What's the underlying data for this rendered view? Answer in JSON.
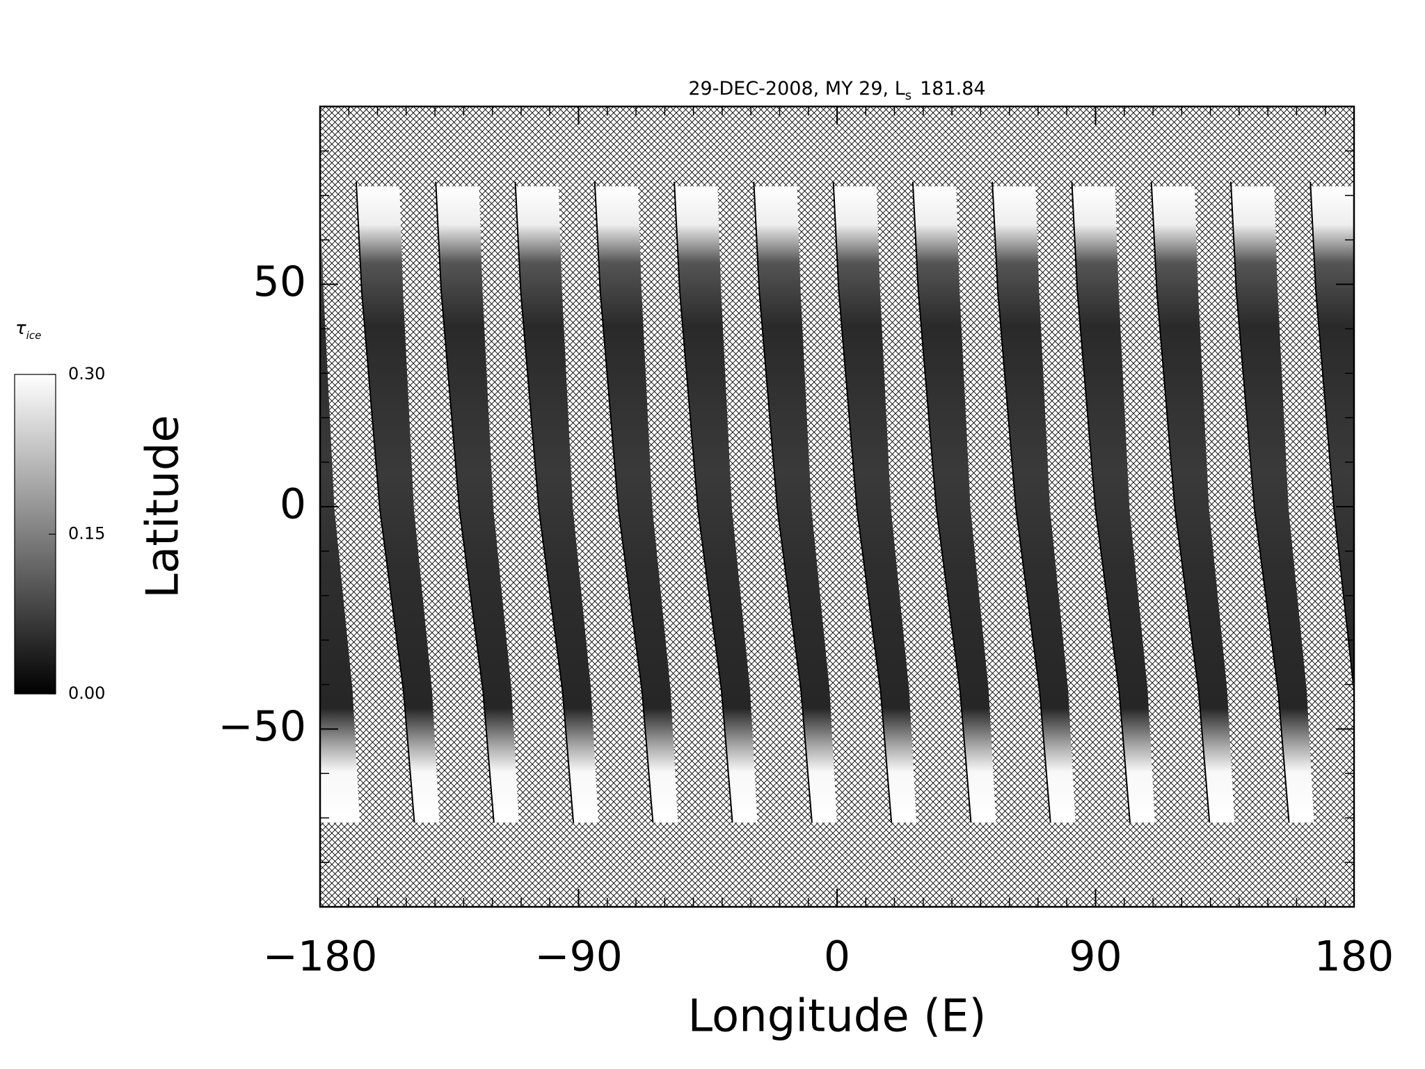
{
  "chart_data": {
    "type": "map",
    "title": "29-DEC-2008, MY 29,  L",
    "title_subscript": "s",
    "title_value": "181.84",
    "xlabel": "Longitude (E)",
    "ylabel": "Latitude",
    "xlim": [
      -180,
      180
    ],
    "ylim": [
      -90,
      90
    ],
    "xticks": [
      {
        "value": -180,
        "label": "−180"
      },
      {
        "value": -90,
        "label": "−90"
      },
      0,
      90,
      180
    ],
    "yticks": [
      {
        "value": -50,
        "label": "−50"
      },
      0,
      50
    ],
    "xminorticks": [
      -170,
      -160,
      -150,
      -140,
      -130,
      -120,
      -110,
      -100,
      -80,
      -70,
      -60,
      -50,
      -40,
      -30,
      -20,
      -10,
      10,
      20,
      30,
      40,
      50,
      60,
      70,
      80,
      100,
      110,
      120,
      130,
      140,
      150,
      160,
      170
    ],
    "yminorticks": [
      -80,
      -70,
      -60,
      -40,
      -30,
      -20,
      -10,
      10,
      20,
      30,
      40,
      60,
      70,
      80
    ],
    "colorbar": {
      "label": "τ",
      "label_subscript": "ice",
      "lim": [
        0,
        0.3
      ],
      "ticks": [
        {
          "value": 0,
          "label": "0.00"
        },
        {
          "value": 0.15,
          "label": "0.15"
        },
        {
          "value": 0.3,
          "label": "0.30"
        }
      ]
    }
  }
}
